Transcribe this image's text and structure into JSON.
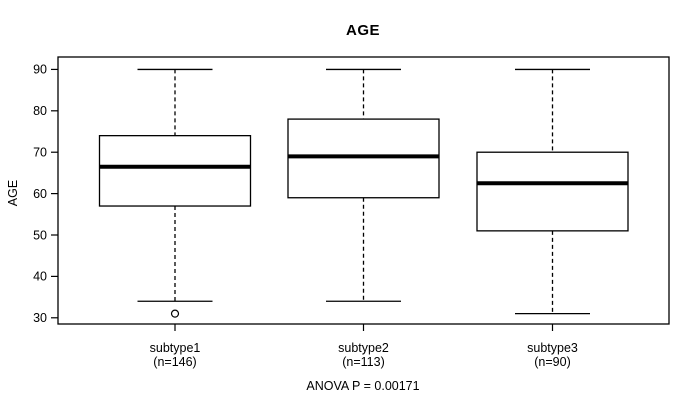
{
  "title": "AGE",
  "y_axis": {
    "label": "AGE",
    "ticks": [
      30,
      40,
      50,
      60,
      70,
      80,
      90
    ]
  },
  "footer": "ANOVA P = 0.00171",
  "colors": {
    "line": "#000000",
    "background": "#ffffff",
    "box_fill": "#ffffff"
  },
  "chart_data": {
    "type": "boxplot",
    "title": "AGE",
    "xlabel": "",
    "ylabel": "AGE",
    "ylim": [
      28.5,
      93
    ],
    "yticks": [
      30,
      40,
      50,
      60,
      70,
      80,
      90
    ],
    "grid": false,
    "whisker_line_style": "dashed",
    "categories": [
      "subtype1",
      "subtype2",
      "subtype3"
    ],
    "category_sublabels": [
      "(n=146)",
      "(n=113)",
      "(n=90)"
    ],
    "series": [
      {
        "name": "subtype1",
        "n": 146,
        "whisker_low": 34,
        "q1": 57,
        "median": 66.5,
        "q3": 74,
        "whisker_high": 90,
        "outliers": [
          31
        ]
      },
      {
        "name": "subtype2",
        "n": 113,
        "whisker_low": 34,
        "q1": 59,
        "median": 69,
        "q3": 78,
        "whisker_high": 90,
        "outliers": []
      },
      {
        "name": "subtype3",
        "n": 90,
        "whisker_low": 31,
        "q1": 51,
        "median": 62.5,
        "q3": 70,
        "whisker_high": 90,
        "outliers": []
      }
    ],
    "annotation": "ANOVA P = 0.00171"
  }
}
